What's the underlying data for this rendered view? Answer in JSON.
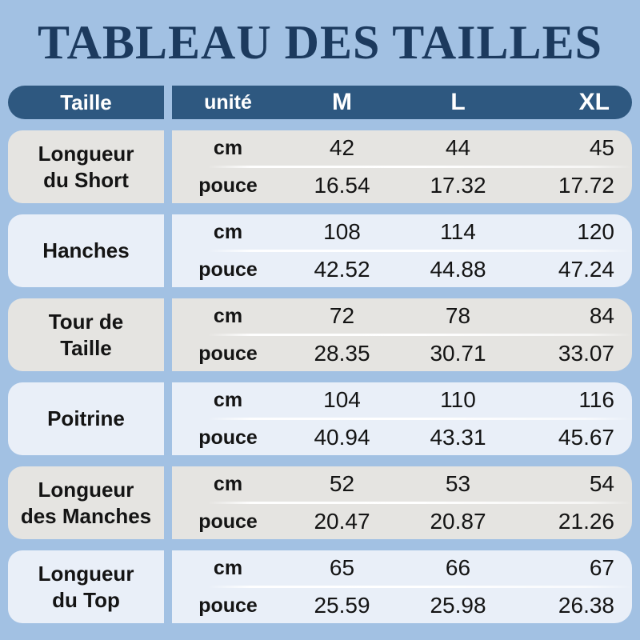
{
  "title": "TABLEAU DES TAILLES",
  "colors": {
    "page_bg": "#a2c1e3",
    "title_color": "#1c3a5e",
    "header_bg": "#2e5880",
    "header_text": "#ffffff",
    "row_gray": "#e5e4e1",
    "row_blue": "#e9eff8",
    "cell_text": "#141414"
  },
  "chart_data": {
    "type": "table",
    "title": "TABLEAU DES TAILLES",
    "header": {
      "taille": "Taille",
      "unite": "unité",
      "sizes": [
        "M",
        "L",
        "XL"
      ]
    },
    "unit_row_labels": {
      "cm": "cm",
      "pouce": "pouce"
    },
    "rows": [
      {
        "label": "Longueur\ndu Short",
        "tone": "gray",
        "cm": [
          "42",
          "44",
          "45"
        ],
        "pouce": [
          "16.54",
          "17.32",
          "17.72"
        ]
      },
      {
        "label": "Hanches",
        "tone": "blue",
        "cm": [
          "108",
          "114",
          "120"
        ],
        "pouce": [
          "42.52",
          "44.88",
          "47.24"
        ]
      },
      {
        "label": "Tour de\nTaille",
        "tone": "gray",
        "cm": [
          "72",
          "78",
          "84"
        ],
        "pouce": [
          "28.35",
          "30.71",
          "33.07"
        ]
      },
      {
        "label": "Poitrine",
        "tone": "blue",
        "cm": [
          "104",
          "110",
          "116"
        ],
        "pouce": [
          "40.94",
          "43.31",
          "45.67"
        ]
      },
      {
        "label": "Longueur\ndes Manches",
        "tone": "gray",
        "cm": [
          "52",
          "53",
          "54"
        ],
        "pouce": [
          "20.47",
          "20.87",
          "21.26"
        ]
      },
      {
        "label": "Longueur\ndu Top",
        "tone": "blue",
        "cm": [
          "65",
          "66",
          "67"
        ],
        "pouce": [
          "25.59",
          "25.98",
          "26.38"
        ]
      }
    ]
  }
}
